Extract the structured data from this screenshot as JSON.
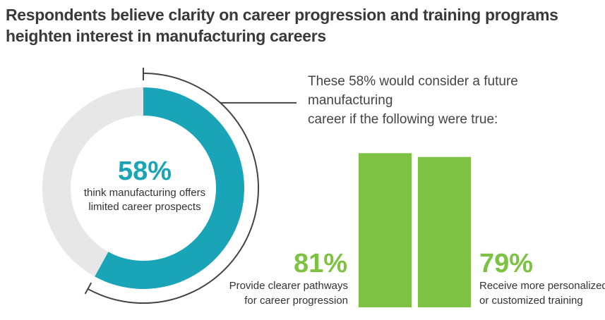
{
  "title": {
    "line1": "Respondents believe clarity on career progression and training programs",
    "line2": "heighten interest in manufacturing careers"
  },
  "donut": {
    "value": "58%",
    "label_line1": "think manufacturing offers",
    "label_line2": "limited career prospects"
  },
  "subtitle": {
    "line1": "These 58% would consider a future manufacturing",
    "line2": "career if the following were true:"
  },
  "bars": {
    "left_value": "81%",
    "left_label_line1": "Provide clearer pathways",
    "left_label_line2": "for career progression",
    "right_value": "79%",
    "right_label_line1": "Receive more personalized",
    "right_label_line2": "or customized training"
  },
  "colors": {
    "teal": "#1aa4b8",
    "ring_bg": "#e6e7e6",
    "green": "#7dc242",
    "text": "#333333"
  },
  "chart_data": [
    {
      "type": "pie",
      "values": [
        58,
        42
      ],
      "categories": [
        "think manufacturing offers limited career prospects",
        ""
      ]
    },
    {
      "type": "bar",
      "categories": [
        "Provide clearer pathways for career progression",
        "Receive more personalized or customized training"
      ],
      "values": [
        81,
        79
      ]
    }
  ]
}
